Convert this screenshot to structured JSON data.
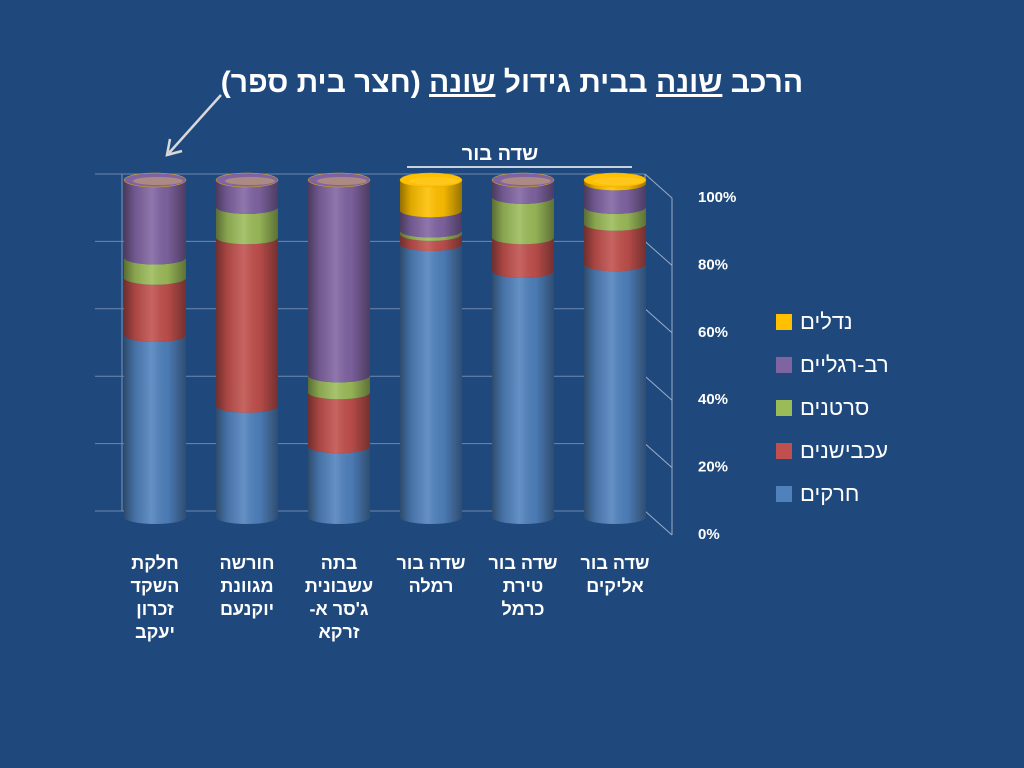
{
  "title": {
    "part1": "הרכב ",
    "u1": "שונה",
    "part2": " בבית גידול ",
    "u2": "שונה",
    "part3": " (חצר בית ספר)"
  },
  "group_label": "שדה בור",
  "chart_data": {
    "type": "bar",
    "stacked": true,
    "percent": true,
    "title": "",
    "ylim": [
      0,
      100
    ],
    "y_ticks": [
      "0%",
      "20%",
      "40%",
      "60%",
      "80%",
      "100%"
    ],
    "categories": [
      [
        "חלקת",
        "השקד",
        "זכרון",
        "יעקב"
      ],
      [
        "חורשה",
        "מגוונת",
        "יוקנעם"
      ],
      [
        "בתה",
        "עשבונית",
        "ג'סר א-",
        "זרקא"
      ],
      [
        "שדה בור",
        "רמלה"
      ],
      [
        "שדה בור",
        "טירת",
        "כרמל"
      ],
      [
        "שדה בור",
        "אליקים"
      ]
    ],
    "series": [
      {
        "name": "חרקים",
        "color": "#4f81bd",
        "values": [
          54,
          33,
          21,
          81,
          73,
          75
        ]
      },
      {
        "name": "עכבישנים",
        "color": "#c0504d",
        "values": [
          17,
          50,
          16,
          3,
          10,
          12
        ]
      },
      {
        "name": "סרטנים",
        "color": "#9bbb59",
        "values": [
          6,
          9,
          5,
          1,
          12,
          5
        ]
      },
      {
        "name": "רב-רגליים",
        "color": "#8064a2",
        "values": [
          23,
          8,
          58,
          6,
          5,
          7
        ]
      },
      {
        "name": "נדלים",
        "color": "#ffc000",
        "values": [
          0,
          0,
          0,
          9,
          0,
          1
        ]
      }
    ],
    "legend": "right",
    "grid": true
  }
}
